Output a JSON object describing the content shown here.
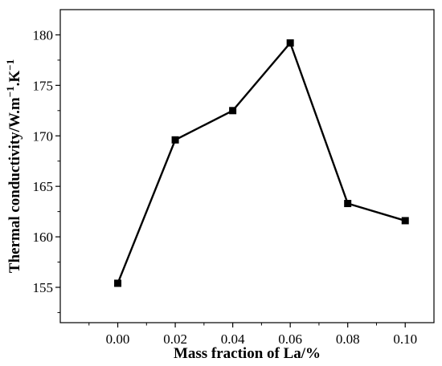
{
  "chart_data": {
    "type": "line",
    "title": "",
    "xlabel": "Mass fraction of La/%",
    "ylabel": {
      "base": "Thermal conductivity/W.m",
      "exp1": "−1",
      "mid": ".K",
      "exp2": "−1"
    },
    "x": [
      0.0,
      0.02,
      0.04,
      0.06,
      0.08,
      0.1
    ],
    "x_tick_labels": [
      "0.00",
      "0.02",
      "0.04",
      "0.06",
      "0.08",
      "0.10"
    ],
    "series": [
      {
        "values": [
          155.4,
          169.6,
          172.5,
          179.2,
          163.3,
          161.6
        ],
        "color": "#000000",
        "marker": "square"
      }
    ],
    "y_ticks": [
      155,
      160,
      165,
      170,
      175,
      180
    ],
    "y_tick_labels": [
      "155",
      "160",
      "165",
      "170",
      "175",
      "180"
    ],
    "xlim": [
      -0.02,
      0.11
    ],
    "ylim": [
      151.5,
      182.5
    ],
    "grid": false,
    "legend": "none"
  }
}
